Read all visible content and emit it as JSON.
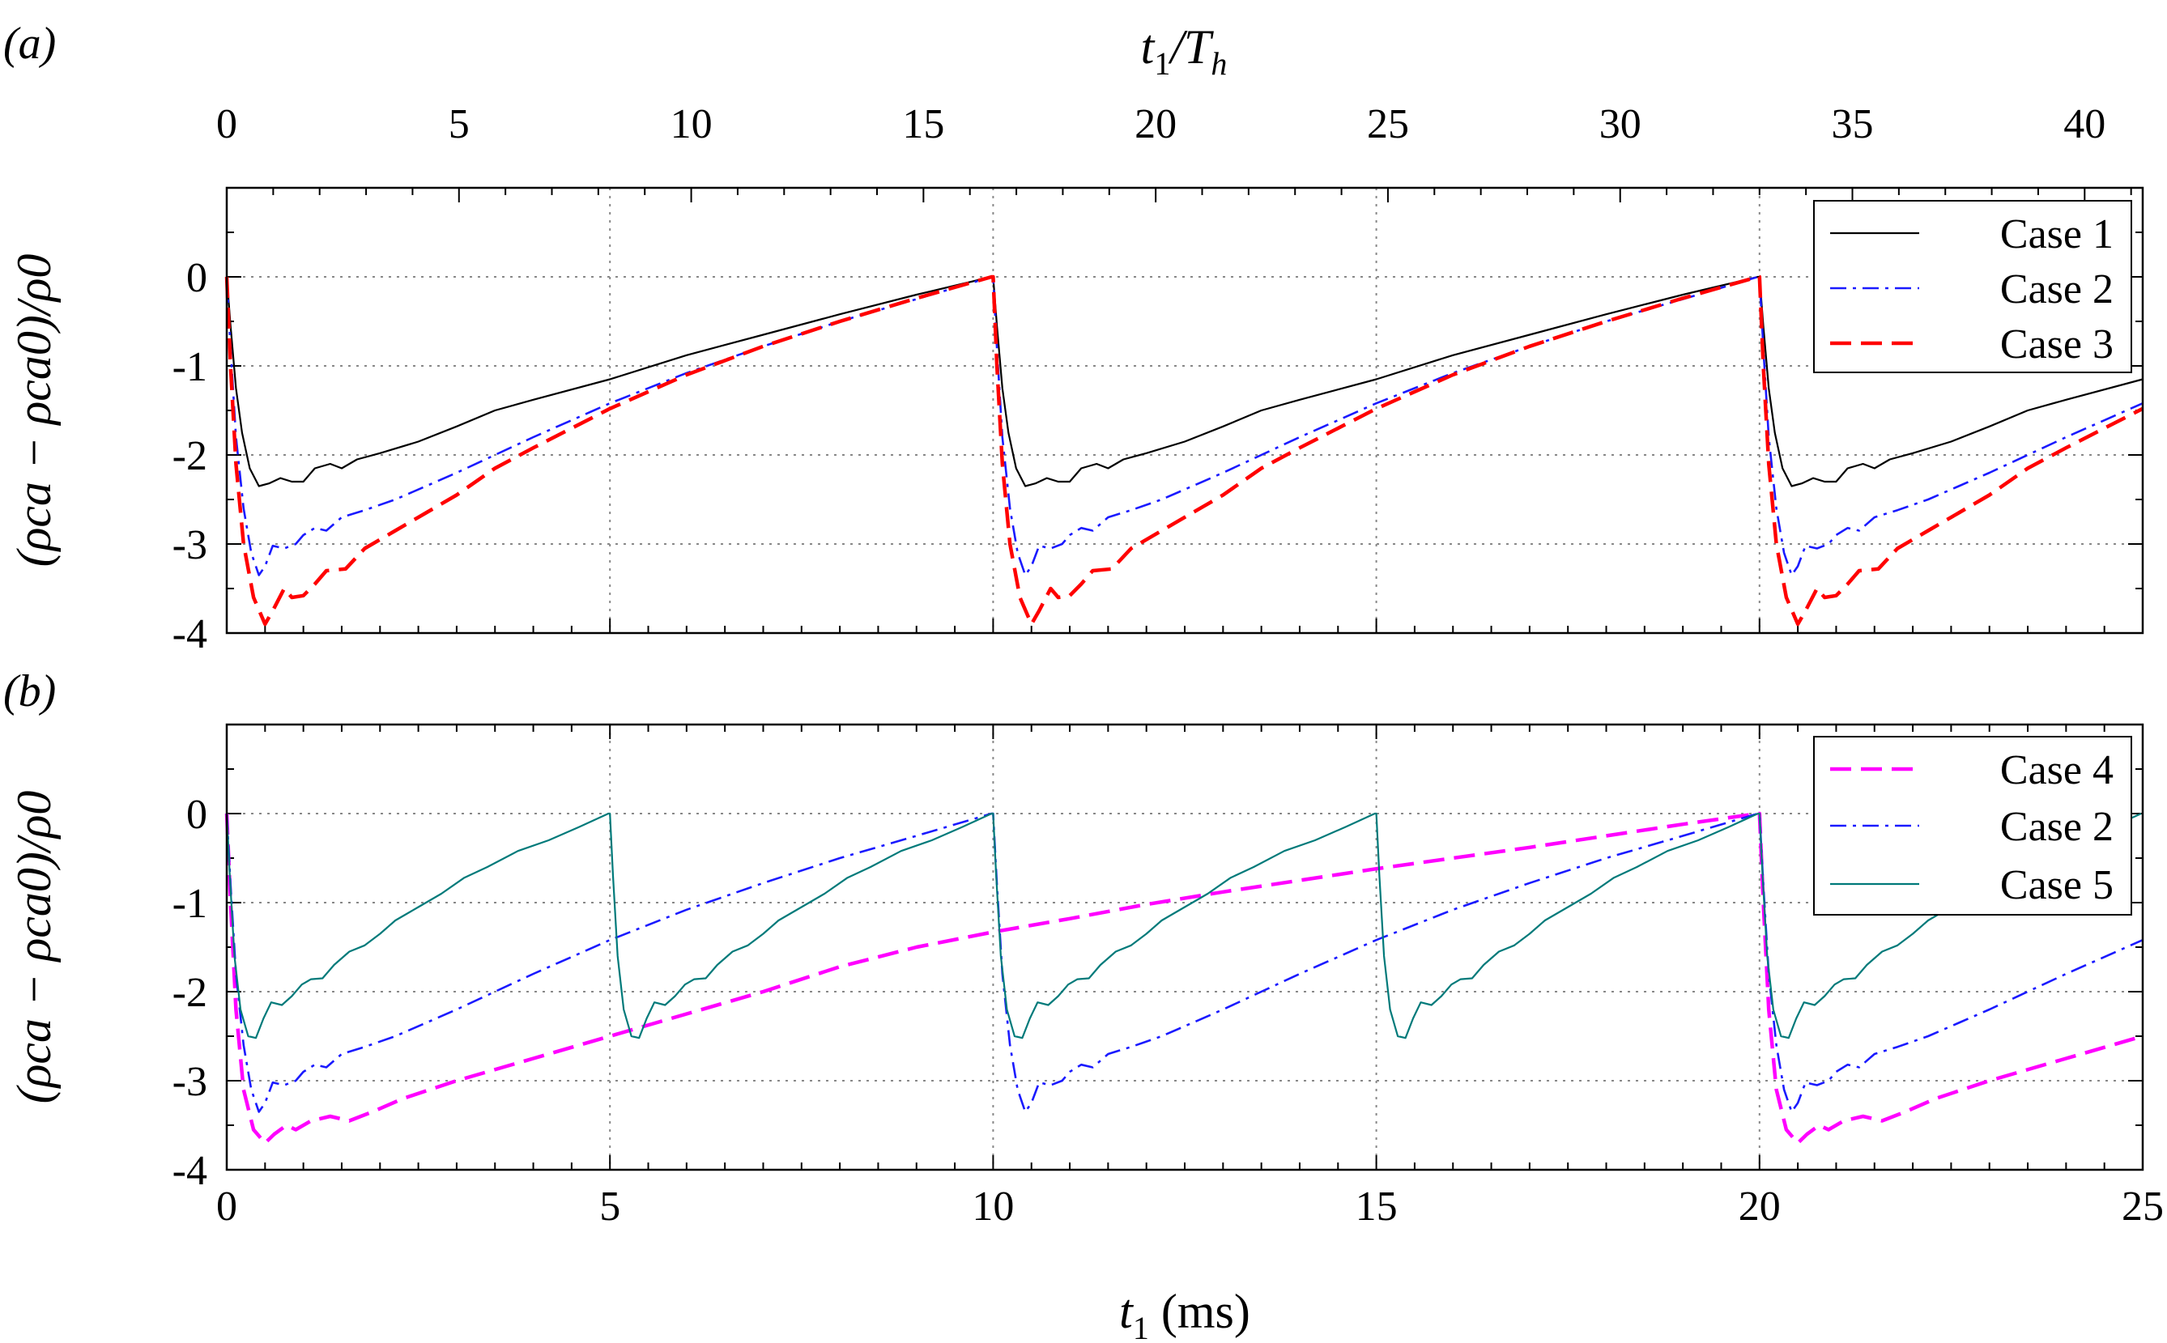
{
  "chart_data": [
    {
      "panel": "(a)",
      "type": "line",
      "top_axis": {
        "label": "t1/Th",
        "label_main": "t",
        "label_sub1": "1",
        "label_sep": "/T",
        "label_sub2": "h",
        "ticks": [
          "0",
          "5",
          "10",
          "15",
          "20",
          "25",
          "30",
          "35",
          "40"
        ],
        "range": [
          0,
          41.25
        ]
      },
      "xlabel": "",
      "ylabel": "(ρca − ρca0)/ρ0",
      "xlim": [
        0,
        25
      ],
      "ylim": [
        -4,
        1
      ],
      "x_ticks": [
        0,
        5,
        10,
        15,
        20,
        25
      ],
      "y_ticks": [
        "0",
        "-1",
        "-2",
        "-3",
        "-4"
      ],
      "grid": "dotted at x = 5, 10, 15, 20 and y = 0 … -4",
      "legend_position": "top-right",
      "series": [
        {
          "name": "Case 1",
          "color": "#000000",
          "style": "solid",
          "period": 10,
          "min": -2.35,
          "profile": [
            [
              0,
              0
            ],
            [
              0.05,
              -0.55
            ],
            [
              0.12,
              -1.25
            ],
            [
              0.2,
              -1.75
            ],
            [
              0.3,
              -2.15
            ],
            [
              0.42,
              -2.35
            ],
            [
              0.55,
              -2.32
            ],
            [
              0.7,
              -2.26
            ],
            [
              0.85,
              -2.3
            ],
            [
              1.0,
              -2.3
            ],
            [
              1.15,
              -2.15
            ],
            [
              1.35,
              -2.1
            ],
            [
              1.5,
              -2.15
            ],
            [
              1.7,
              -2.05
            ],
            [
              2.0,
              -1.98
            ],
            [
              2.5,
              -1.85
            ],
            [
              3.0,
              -1.68
            ],
            [
              3.5,
              -1.5
            ],
            [
              4.0,
              -1.38
            ],
            [
              5.0,
              -1.15
            ],
            [
              6.0,
              -0.88
            ],
            [
              7.0,
              -0.65
            ],
            [
              8.0,
              -0.42
            ],
            [
              9.0,
              -0.2
            ],
            [
              9.98,
              0
            ]
          ]
        },
        {
          "name": "Case 2",
          "color": "#1a1aff",
          "style": "dash-dot",
          "period": 10,
          "min": -3.35,
          "profile": [
            [
              0,
              0
            ],
            [
              0.05,
              -0.8
            ],
            [
              0.12,
              -1.8
            ],
            [
              0.22,
              -2.6
            ],
            [
              0.32,
              -3.1
            ],
            [
              0.42,
              -3.35
            ],
            [
              0.5,
              -3.25
            ],
            [
              0.6,
              -3.02
            ],
            [
              0.75,
              -3.05
            ],
            [
              0.9,
              -3.0
            ],
            [
              1.0,
              -2.9
            ],
            [
              1.15,
              -2.82
            ],
            [
              1.3,
              -2.85
            ],
            [
              1.5,
              -2.7
            ],
            [
              1.8,
              -2.62
            ],
            [
              2.2,
              -2.5
            ],
            [
              2.6,
              -2.35
            ],
            [
              3.0,
              -2.2
            ],
            [
              3.5,
              -2.0
            ],
            [
              4.0,
              -1.8
            ],
            [
              5.0,
              -1.42
            ],
            [
              6.0,
              -1.08
            ],
            [
              7.0,
              -0.78
            ],
            [
              8.0,
              -0.5
            ],
            [
              9.0,
              -0.25
            ],
            [
              9.98,
              0
            ]
          ]
        },
        {
          "name": "Case 3",
          "color": "#ff0000",
          "style": "dashed",
          "period": 10,
          "min": -3.9,
          "profile": [
            [
              0,
              0
            ],
            [
              0.05,
              -1.0
            ],
            [
              0.12,
              -2.1
            ],
            [
              0.22,
              -3.0
            ],
            [
              0.35,
              -3.6
            ],
            [
              0.5,
              -3.9
            ],
            [
              0.6,
              -3.75
            ],
            [
              0.75,
              -3.5
            ],
            [
              0.85,
              -3.6
            ],
            [
              1.0,
              -3.58
            ],
            [
              1.15,
              -3.45
            ],
            [
              1.3,
              -3.3
            ],
            [
              1.55,
              -3.28
            ],
            [
              1.8,
              -3.05
            ],
            [
              2.2,
              -2.85
            ],
            [
              2.6,
              -2.65
            ],
            [
              3.0,
              -2.45
            ],
            [
              3.5,
              -2.15
            ],
            [
              4.0,
              -1.92
            ],
            [
              5.0,
              -1.48
            ],
            [
              6.0,
              -1.1
            ],
            [
              7.0,
              -0.78
            ],
            [
              8.0,
              -0.5
            ],
            [
              9.0,
              -0.24
            ],
            [
              9.98,
              0
            ]
          ]
        }
      ]
    },
    {
      "panel": "(b)",
      "type": "line",
      "xlabel": "t1 (ms)",
      "xlabel_main": "t",
      "xlabel_sub": "1",
      "xlabel_unit": " (ms)",
      "ylabel": "(ρca − ρca0)/ρ0",
      "xlim": [
        0,
        25
      ],
      "ylim": [
        -4,
        1
      ],
      "x_ticks": [
        "0",
        "5",
        "10",
        "15",
        "20",
        "25"
      ],
      "y_ticks": [
        "0",
        "-1",
        "-2",
        "-3",
        "-4"
      ],
      "grid": "dotted at x = 5, 10, 15, 20 and y = 0 … -4",
      "legend_position": "top-right",
      "series": [
        {
          "name": "Case 4",
          "color": "#ff00ff",
          "style": "dashed",
          "period": 20,
          "min": -3.7,
          "profile": [
            [
              0,
              0
            ],
            [
              0.05,
              -1.0
            ],
            [
              0.12,
              -2.2
            ],
            [
              0.22,
              -3.1
            ],
            [
              0.35,
              -3.55
            ],
            [
              0.5,
              -3.7
            ],
            [
              0.62,
              -3.6
            ],
            [
              0.78,
              -3.5
            ],
            [
              0.9,
              -3.55
            ],
            [
              1.1,
              -3.45
            ],
            [
              1.35,
              -3.4
            ],
            [
              1.6,
              -3.45
            ],
            [
              1.9,
              -3.35
            ],
            [
              2.3,
              -3.2
            ],
            [
              3.0,
              -3.0
            ],
            [
              4.0,
              -2.75
            ],
            [
              5.0,
              -2.5
            ],
            [
              6.0,
              -2.25
            ],
            [
              7.0,
              -2.0
            ],
            [
              8.0,
              -1.72
            ],
            [
              9.0,
              -1.5
            ],
            [
              10.0,
              -1.33
            ],
            [
              11.0,
              -1.18
            ],
            [
              12.0,
              -1.02
            ],
            [
              13.0,
              -0.88
            ],
            [
              14.0,
              -0.75
            ],
            [
              15.0,
              -0.62
            ],
            [
              16.0,
              -0.5
            ],
            [
              17.0,
              -0.38
            ],
            [
              18.0,
              -0.25
            ],
            [
              19.0,
              -0.12
            ],
            [
              19.98,
              0
            ]
          ]
        },
        {
          "name": "Case 2",
          "color": "#1a1aff",
          "style": "dash-dot",
          "period": 10,
          "min": -3.35,
          "profile": [
            [
              0,
              0
            ],
            [
              0.05,
              -0.8
            ],
            [
              0.12,
              -1.8
            ],
            [
              0.22,
              -2.6
            ],
            [
              0.32,
              -3.1
            ],
            [
              0.42,
              -3.35
            ],
            [
              0.5,
              -3.25
            ],
            [
              0.6,
              -3.02
            ],
            [
              0.75,
              -3.05
            ],
            [
              0.9,
              -3.0
            ],
            [
              1.0,
              -2.9
            ],
            [
              1.15,
              -2.82
            ],
            [
              1.3,
              -2.85
            ],
            [
              1.5,
              -2.7
            ],
            [
              1.8,
              -2.62
            ],
            [
              2.2,
              -2.5
            ],
            [
              2.6,
              -2.35
            ],
            [
              3.0,
              -2.2
            ],
            [
              3.5,
              -2.0
            ],
            [
              4.0,
              -1.8
            ],
            [
              5.0,
              -1.42
            ],
            [
              6.0,
              -1.08
            ],
            [
              7.0,
              -0.78
            ],
            [
              8.0,
              -0.5
            ],
            [
              9.0,
              -0.25
            ],
            [
              9.98,
              0
            ]
          ]
        },
        {
          "name": "Case 5",
          "color": "#007a7a",
          "style": "solid",
          "period": 5,
          "min": -2.55,
          "profile": [
            [
              0,
              0
            ],
            [
              0.04,
              -0.7
            ],
            [
              0.1,
              -1.6
            ],
            [
              0.18,
              -2.2
            ],
            [
              0.28,
              -2.5
            ],
            [
              0.38,
              -2.52
            ],
            [
              0.48,
              -2.3
            ],
            [
              0.58,
              -2.12
            ],
            [
              0.72,
              -2.15
            ],
            [
              0.85,
              -2.05
            ],
            [
              0.98,
              -1.92
            ],
            [
              1.1,
              -1.86
            ],
            [
              1.25,
              -1.85
            ],
            [
              1.4,
              -1.7
            ],
            [
              1.6,
              -1.55
            ],
            [
              1.8,
              -1.48
            ],
            [
              2.0,
              -1.35
            ],
            [
              2.2,
              -1.2
            ],
            [
              2.5,
              -1.05
            ],
            [
              2.8,
              -0.9
            ],
            [
              3.1,
              -0.72
            ],
            [
              3.4,
              -0.6
            ],
            [
              3.8,
              -0.42
            ],
            [
              4.2,
              -0.3
            ],
            [
              4.6,
              -0.15
            ],
            [
              4.98,
              0
            ]
          ]
        }
      ]
    }
  ]
}
